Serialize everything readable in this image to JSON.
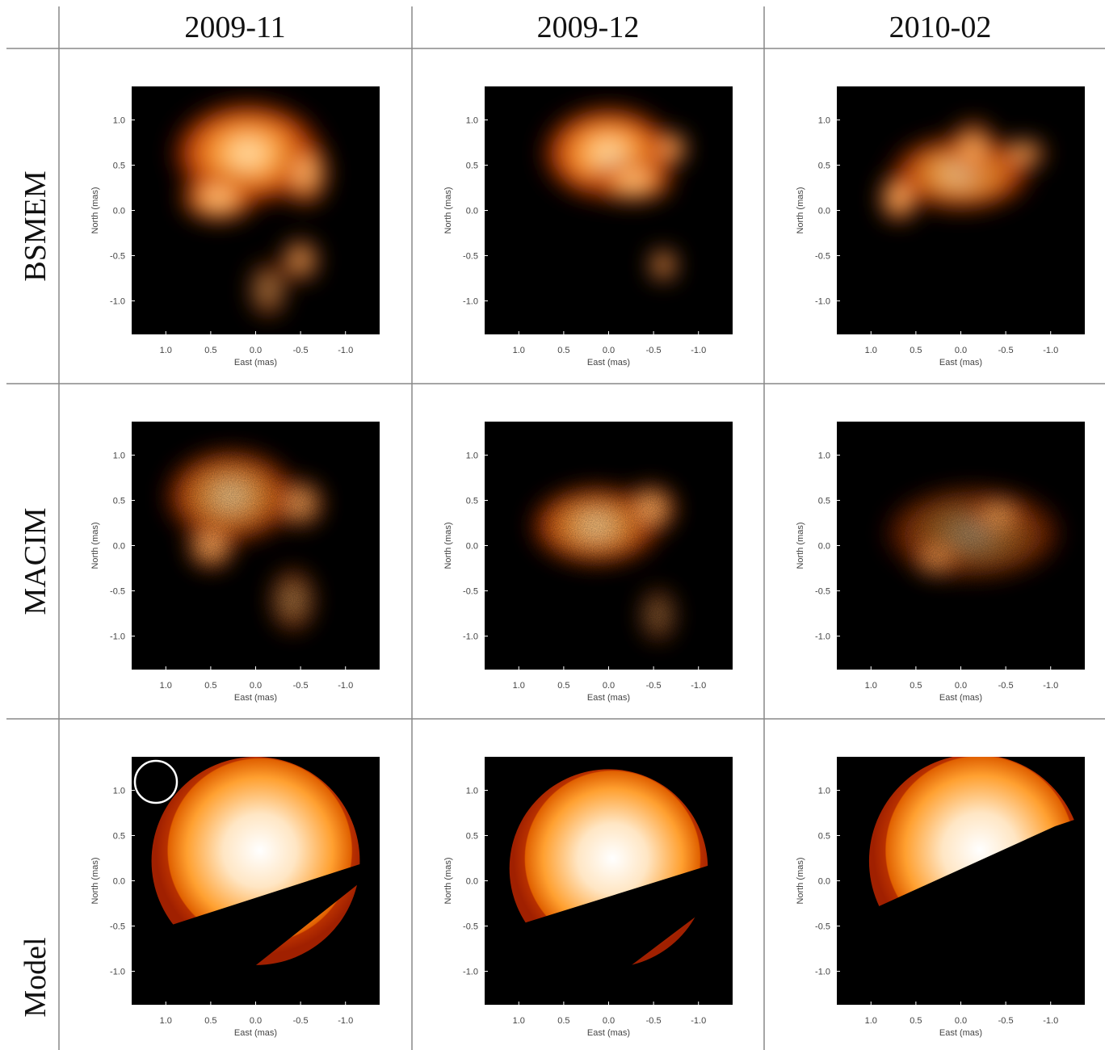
{
  "columns": [
    "2009-11",
    "2009-12",
    "2010-02"
  ],
  "rows": [
    "BSMEM",
    "MACIM",
    "Model"
  ],
  "chart_data": [
    {
      "type": "image",
      "xlabel": "East (mas)",
      "ylabel": "North (mas)",
      "xlim": [
        1.38,
        -1.38
      ],
      "ylim": [
        -1.37,
        1.37
      ],
      "xticks": [
        {
          "value": 1,
          "label": "1.0"
        },
        0.5,
        {
          "value": 0,
          "label": "0.0"
        },
        -0.5,
        {
          "value": -1,
          "label": "-1.0"
        }
      ],
      "yticks": [
        {
          "value": 1,
          "label": "1.0"
        },
        0.5,
        {
          "value": 0,
          "label": "0.0"
        },
        -0.5,
        {
          "value": -1,
          "label": "-1.0"
        }
      ]
    },
    {
      "type": "image",
      "xlabel": "East (mas)",
      "ylabel": "North (mas)",
      "xlim": [
        1.38,
        -1.38
      ],
      "ylim": [
        -1.37,
        1.37
      ],
      "xticks": [
        {
          "value": 1,
          "label": "1.0"
        },
        0.5,
        {
          "value": 0,
          "label": "0.0"
        },
        -0.5,
        {
          "value": -1,
          "label": "-1.0"
        }
      ],
      "yticks": [
        {
          "value": 1,
          "label": "1.0"
        },
        0.5,
        {
          "value": 0,
          "label": "0.0"
        },
        -0.5,
        {
          "value": -1,
          "label": "-1.0"
        }
      ]
    },
    {
      "type": "image",
      "xlabel": "East (mas)",
      "ylabel": "North (mas)",
      "xlim": [
        1.38,
        -1.38
      ],
      "ylim": [
        -1.37,
        1.37
      ],
      "xticks": [
        {
          "value": 1,
          "label": "1.0"
        },
        0.5,
        {
          "value": 0,
          "label": "0.0"
        },
        -0.5,
        {
          "value": -1,
          "label": "-1.0"
        }
      ],
      "yticks": [
        {
          "value": 1,
          "label": "1.0"
        },
        0.5,
        {
          "value": 0,
          "label": "0.0"
        },
        -0.5,
        {
          "value": -1,
          "label": "-1.0"
        }
      ]
    },
    {
      "type": "image",
      "xlabel": "East (mas)",
      "ylabel": "North (mas)",
      "xlim": [
        1.38,
        -1.38
      ],
      "ylim": [
        -1.37,
        1.37
      ],
      "xticks": [
        {
          "value": 1,
          "label": "1.0"
        },
        0.5,
        {
          "value": 0,
          "label": "0.0"
        },
        -0.5,
        {
          "value": -1,
          "label": "-1.0"
        }
      ],
      "yticks": [
        {
          "value": 1,
          "label": "1.0"
        },
        0.5,
        {
          "value": 0,
          "label": "0.0"
        },
        -0.5,
        {
          "value": -1,
          "label": "-1.0"
        }
      ]
    },
    {
      "type": "image",
      "xlabel": "East (mas)",
      "ylabel": "North (mas)",
      "xlim": [
        1.38,
        -1.38
      ],
      "ylim": [
        -1.37,
        1.37
      ],
      "xticks": [
        {
          "value": 1,
          "label": "1.0"
        },
        0.5,
        {
          "value": 0,
          "label": "0.0"
        },
        -0.5,
        {
          "value": -1,
          "label": "-1.0"
        }
      ],
      "yticks": [
        {
          "value": 1,
          "label": "1.0"
        },
        0.5,
        {
          "value": 0,
          "label": "0.0"
        },
        -0.5,
        {
          "value": -1,
          "label": "-1.0"
        }
      ]
    },
    {
      "type": "image",
      "xlabel": "East (mas)",
      "ylabel": "North (mas)",
      "xlim": [
        1.38,
        -1.38
      ],
      "ylim": [
        -1.37,
        1.37
      ],
      "xticks": [
        {
          "value": 1,
          "label": "1.0"
        },
        0.5,
        {
          "value": 0,
          "label": "0.0"
        },
        -0.5,
        {
          "value": -1,
          "label": "-1.0"
        }
      ],
      "yticks": [
        {
          "value": 1,
          "label": "1.0"
        },
        0.5,
        {
          "value": 0,
          "label": "0.0"
        },
        -0.5,
        {
          "value": -1,
          "label": "-1.0"
        }
      ]
    },
    {
      "type": "image",
      "xlabel": "East (mas)",
      "ylabel": "North (mas)",
      "xlim": [
        1.38,
        -1.38
      ],
      "ylim": [
        -1.37,
        1.37
      ],
      "xticks": [
        {
          "value": 1,
          "label": "1.0"
        },
        0.5,
        {
          "value": 0,
          "label": "0.0"
        },
        -0.5,
        {
          "value": -1,
          "label": "-1.0"
        }
      ],
      "yticks": [
        {
          "value": 1,
          "label": "1.0"
        },
        0.5,
        {
          "value": 0,
          "label": "0.0"
        },
        -0.5,
        {
          "value": -1,
          "label": "-1.0"
        }
      ]
    },
    {
      "type": "image",
      "xlabel": "East (mas)",
      "ylabel": "North (mas)",
      "xlim": [
        1.38,
        -1.38
      ],
      "ylim": [
        -1.37,
        1.37
      ],
      "xticks": [
        {
          "value": 1,
          "label": "1.0"
        },
        0.5,
        {
          "value": 0,
          "label": "0.0"
        },
        -0.5,
        {
          "value": -1,
          "label": "-1.0"
        }
      ],
      "yticks": [
        {
          "value": 1,
          "label": "1.0"
        },
        0.5,
        {
          "value": 0,
          "label": "0.0"
        },
        -0.5,
        {
          "value": -1,
          "label": "-1.0"
        }
      ]
    },
    {
      "type": "image",
      "xlabel": "East (mas)",
      "ylabel": "North (mas)",
      "xlim": [
        1.38,
        -1.38
      ],
      "ylim": [
        -1.37,
        1.37
      ],
      "xticks": [
        {
          "value": 1,
          "label": "1.0"
        },
        0.5,
        {
          "value": 0,
          "label": "0.0"
        },
        -0.5,
        {
          "value": -1,
          "label": "-1.0"
        }
      ],
      "yticks": [
        {
          "value": 1,
          "label": "1.0"
        },
        0.5,
        {
          "value": 0,
          "label": "0.0"
        },
        -0.5,
        {
          "value": -1,
          "label": "-1.0"
        }
      ]
    }
  ]
}
